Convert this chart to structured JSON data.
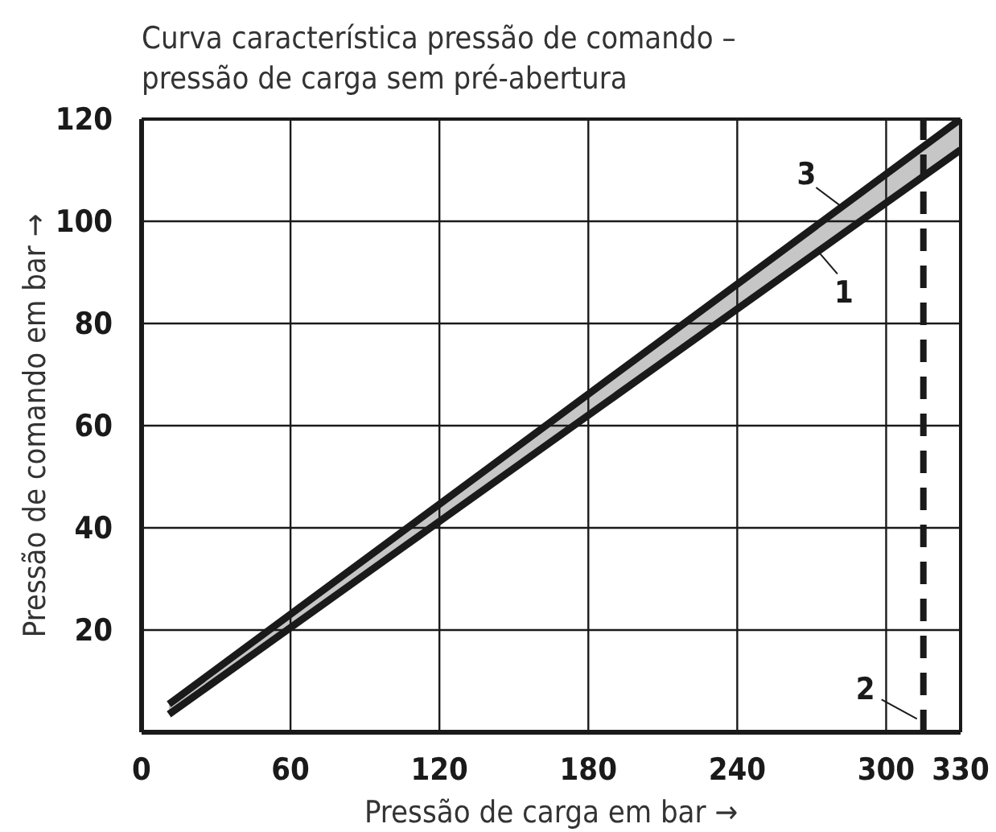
{
  "chart_data": {
    "type": "line",
    "title": "Curva característica pressão de comando – pressão de carga sem pré-abertura",
    "xlabel": "Pressão de carga em bar →",
    "ylabel": "Pressão de comando em bar →",
    "x": [
      11,
      330
    ],
    "xlim": [
      0,
      330
    ],
    "ylim": [
      0,
      120
    ],
    "xticks": [
      0,
      60,
      120,
      180,
      240,
      300,
      330
    ],
    "yticks": [
      {
        "value": 0,
        "label": null
      },
      20,
      40,
      60,
      80,
      100,
      120
    ],
    "grid": true,
    "line_style": "solid",
    "marker": "none",
    "series": [
      {
        "name": "1",
        "color": "#1a1a1a",
        "values": [
          3.5,
          114
        ]
      },
      {
        "name": "3",
        "color": "#1a1a1a",
        "values": [
          5.5,
          120
        ],
        "lower": [
          3.5,
          114
        ],
        "upper": [
          5.5,
          120
        ]
      }
    ],
    "ref_lines": [
      {
        "axis": "x",
        "value": 315,
        "line_style": "dashed",
        "color": "#1a1a1a"
      }
    ],
    "annotations": [
      {
        "text": "2",
        "x": 315,
        "y": 2
      }
    ]
  }
}
